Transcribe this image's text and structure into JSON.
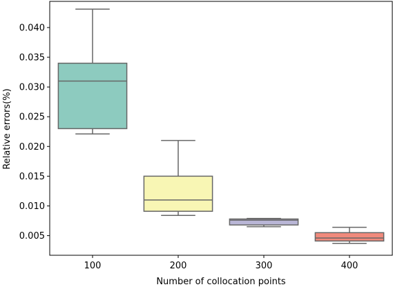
{
  "chart_data": {
    "type": "box",
    "title": "",
    "xlabel": "Number of collocation points",
    "ylabel": "Relative errors(%)",
    "ylim": [
      0.0017,
      0.0444
    ],
    "y_ticks": [
      "0.005",
      "0.010",
      "0.015",
      "0.020",
      "0.025",
      "0.030",
      "0.035",
      "0.040"
    ],
    "grid": false,
    "legend": "none",
    "categories": [
      "100",
      "200",
      "300",
      "400"
    ],
    "boxes": [
      {
        "category": "100",
        "whisker_low": 0.0221,
        "q1": 0.023,
        "median": 0.031,
        "q3": 0.034,
        "whisker_high": 0.0431,
        "color": "#8dcbbf"
      },
      {
        "category": "200",
        "whisker_low": 0.0084,
        "q1": 0.0091,
        "median": 0.011,
        "q3": 0.015,
        "whisker_high": 0.021,
        "color": "#f8f6b4"
      },
      {
        "category": "300",
        "whisker_low": 0.0065,
        "q1": 0.0068,
        "median": 0.0076,
        "q3": 0.0078,
        "whisker_high": 0.0079,
        "color": "#b9b6d6"
      },
      {
        "category": "400",
        "whisker_low": 0.0037,
        "q1": 0.0041,
        "median": 0.0046,
        "q3": 0.0055,
        "whisker_high": 0.0064,
        "color": "#f08a7c"
      }
    ],
    "line_color": "#666666"
  }
}
